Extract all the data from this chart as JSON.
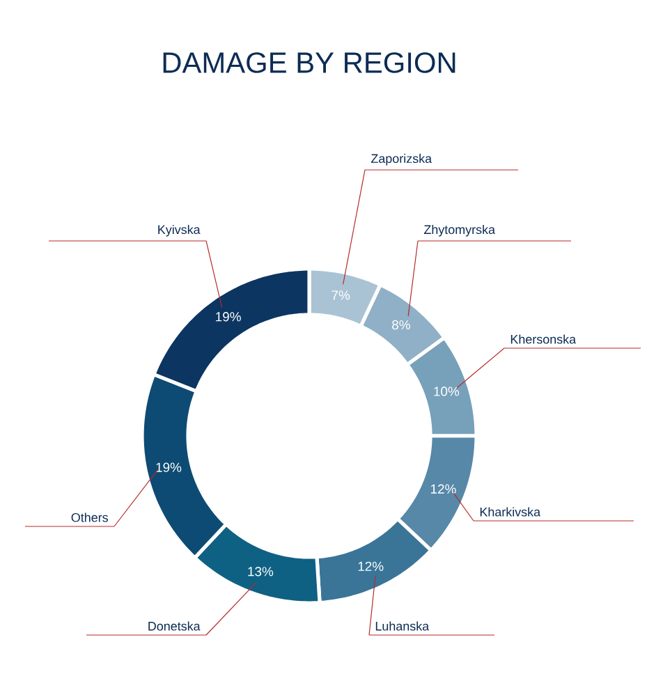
{
  "chart_data": {
    "type": "donut",
    "title": "DAMAGE BY REGION",
    "categories": [
      "Zaporizska",
      "Zhytomyrska",
      "Khersonska",
      "Kharkivska",
      "Luhanska",
      "Donetska",
      "Others",
      "Kyivska"
    ],
    "values": [
      7,
      8,
      10,
      12,
      12,
      13,
      19,
      19
    ],
    "colors": [
      "#a9c3d4",
      "#8fb0c6",
      "#77a0ba",
      "#5888a8",
      "#3a7598",
      "#0f6184",
      "#0e4b74",
      "#0c3561"
    ],
    "value_labels": [
      "7%",
      "8%",
      "10%",
      "12%",
      "12%",
      "13%",
      "19%",
      "19%"
    ]
  }
}
